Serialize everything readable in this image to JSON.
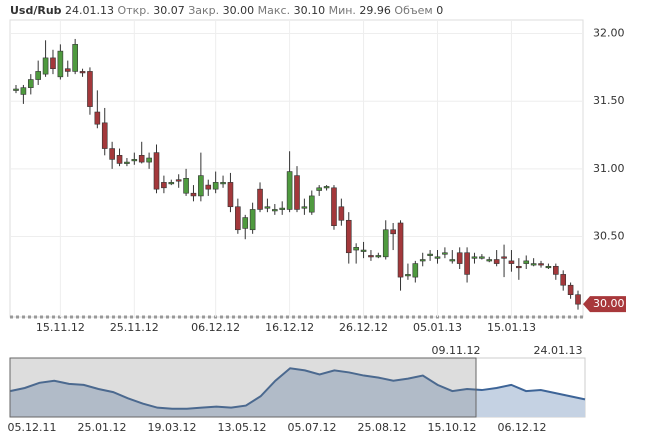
{
  "header": {
    "symbol": "Usd/Rub",
    "date": "24.01.13",
    "open_label": "Откр.",
    "open": "30.07",
    "close_label": "Закр.",
    "close": "30.00",
    "high_label": "Макс.",
    "high": "30.10",
    "low_label": "Мин.",
    "low": "29.96",
    "volume_label": "Объем",
    "volume": "0"
  },
  "chart_data": {
    "type": "candlestick",
    "up_color": "#4f9a3f",
    "down_color": "#a3383b",
    "grid": true,
    "x": [
      "09.11.12",
      "10.11.12",
      "11.11.12",
      "12.11.12",
      "13.11.12",
      "14.11.12",
      "15.11.12",
      "16.11.12",
      "17.11.12",
      "18.11.12",
      "19.11.12",
      "20.11.12",
      "21.11.12",
      "22.11.12",
      "23.11.12",
      "24.11.12",
      "25.11.12",
      "26.11.12",
      "27.11.12",
      "28.11.12",
      "29.11.12",
      "30.11.12",
      "01.12.12",
      "02.12.12",
      "03.12.12",
      "04.12.12",
      "05.12.12",
      "06.12.12",
      "07.12.12",
      "08.12.12",
      "09.12.12",
      "10.12.12",
      "11.12.12",
      "12.12.12",
      "13.12.12",
      "14.12.12",
      "15.12.12",
      "16.12.12",
      "17.12.12",
      "18.12.12",
      "19.12.12",
      "20.12.12",
      "21.12.12",
      "22.12.12",
      "23.12.12",
      "24.12.12",
      "25.12.12",
      "26.12.12",
      "27.12.12",
      "28.12.12",
      "29.12.12",
      "30.12.12",
      "31.12.12",
      "01.01.13",
      "02.01.13",
      "03.01.13",
      "04.01.13",
      "05.01.13",
      "06.01.13",
      "07.01.13",
      "08.01.13",
      "09.01.13",
      "10.01.13",
      "11.01.13",
      "12.01.13",
      "13.01.13",
      "14.01.13",
      "15.01.13",
      "16.01.13",
      "17.01.13",
      "18.01.13",
      "19.01.13",
      "20.01.13",
      "21.01.13",
      "22.01.13",
      "23.01.13",
      "24.01.13"
    ],
    "open": [
      31.58,
      31.55,
      31.6,
      31.66,
      31.7,
      31.82,
      31.68,
      31.74,
      31.72,
      31.72,
      31.72,
      31.42,
      31.34,
      31.15,
      31.1,
      31.05,
      31.06,
      31.1,
      31.05,
      31.12,
      30.9,
      30.9,
      30.92,
      30.82,
      30.82,
      30.8,
      30.88,
      30.85,
      30.9,
      30.9,
      30.72,
      30.56,
      30.55,
      30.85,
      30.72,
      30.7,
      30.7,
      30.7,
      30.95,
      30.72,
      30.68,
      30.84,
      30.86,
      30.86,
      30.72,
      30.62,
      30.4,
      30.4,
      30.36,
      30.36,
      30.35,
      30.55,
      30.6,
      30.22,
      30.2,
      30.32,
      30.36,
      30.35,
      30.38,
      30.33,
      30.38,
      30.38,
      30.35,
      30.35,
      30.33,
      30.33,
      30.35,
      30.32,
      30.28,
      30.3,
      30.3,
      30.3,
      30.28,
      30.28,
      30.22,
      30.14,
      30.07
    ],
    "high": [
      31.62,
      31.62,
      31.7,
      31.8,
      31.95,
      31.88,
      31.92,
      31.8,
      31.96,
      31.74,
      31.75,
      31.58,
      31.45,
      31.2,
      31.15,
      31.08,
      31.12,
      31.2,
      31.12,
      31.18,
      30.95,
      30.92,
      30.96,
      31.0,
      30.88,
      31.12,
      30.92,
      30.98,
      30.95,
      30.97,
      30.78,
      30.66,
      30.75,
      30.9,
      30.78,
      30.74,
      30.76,
      31.13,
      31.02,
      30.78,
      30.84,
      30.88,
      30.88,
      30.88,
      30.78,
      30.68,
      30.45,
      30.46,
      30.4,
      30.38,
      30.62,
      30.6,
      30.62,
      30.3,
      30.32,
      30.38,
      30.4,
      30.4,
      30.42,
      30.4,
      30.42,
      30.42,
      30.38,
      30.37,
      30.35,
      30.4,
      30.44,
      30.4,
      30.34,
      30.36,
      30.34,
      30.32,
      30.3,
      30.3,
      30.25,
      30.16,
      30.1
    ],
    "low": [
      31.56,
      31.48,
      31.55,
      31.62,
      31.68,
      31.7,
      31.66,
      31.68,
      31.7,
      31.68,
      31.4,
      31.3,
      31.1,
      31.0,
      31.02,
      31.02,
      31.03,
      31.04,
      31.0,
      30.82,
      30.82,
      30.88,
      30.86,
      30.8,
      30.76,
      30.76,
      30.8,
      30.82,
      30.86,
      30.68,
      30.52,
      30.48,
      30.52,
      30.68,
      30.68,
      30.66,
      30.66,
      30.68,
      30.68,
      30.66,
      30.66,
      30.8,
      30.84,
      30.55,
      30.58,
      30.3,
      30.3,
      30.34,
      30.32,
      30.34,
      30.33,
      30.4,
      30.1,
      30.18,
      30.16,
      30.28,
      30.32,
      30.3,
      30.34,
      30.3,
      30.26,
      30.16,
      30.3,
      30.33,
      30.31,
      30.28,
      30.2,
      30.24,
      30.18,
      30.26,
      30.28,
      30.27,
      30.26,
      30.18,
      30.1,
      30.04,
      29.96
    ],
    "close": [
      31.59,
      31.6,
      31.66,
      31.72,
      31.82,
      31.74,
      31.87,
      31.72,
      31.92,
      31.71,
      31.46,
      31.33,
      31.15,
      31.07,
      31.04,
      31.05,
      31.07,
      31.05,
      31.08,
      30.85,
      30.86,
      30.9,
      30.91,
      30.93,
      30.8,
      30.95,
      30.85,
      30.9,
      30.9,
      30.72,
      30.55,
      30.64,
      30.7,
      30.7,
      30.72,
      30.7,
      30.71,
      30.98,
      30.7,
      30.72,
      30.8,
      30.86,
      30.87,
      30.58,
      30.62,
      30.38,
      30.42,
      30.4,
      30.35,
      30.36,
      30.55,
      30.52,
      30.2,
      30.22,
      30.3,
      30.33,
      30.37,
      30.35,
      30.38,
      30.33,
      30.3,
      30.22,
      30.35,
      30.35,
      30.33,
      30.3,
      30.34,
      30.3,
      30.27,
      30.32,
      30.3,
      30.29,
      30.28,
      30.22,
      30.14,
      30.07,
      30.0
    ],
    "xticks": [
      "15.11.12",
      "25.11.12",
      "06.12.12",
      "16.12.12",
      "26.12.12",
      "05.01.13",
      "15.01.13"
    ],
    "ylim": [
      29.92,
      32.1
    ],
    "yticks": [
      {
        "value": 32,
        "label": "32.00"
      },
      {
        "value": 31.5,
        "label": "31.50"
      },
      {
        "value": 31,
        "label": "31.00"
      },
      {
        "value": 30.5,
        "label": "30.50"
      }
    ],
    "last_price": {
      "value": 30,
      "label": "30.00"
    },
    "navigator": {
      "type": "area",
      "color": "#3d6497",
      "ylim": [
        28.5,
        34
      ],
      "values": [
        31.0,
        31.3,
        31.8,
        32.0,
        31.7,
        31.6,
        31.2,
        30.9,
        30.3,
        29.8,
        29.4,
        29.3,
        29.3,
        29.4,
        29.5,
        29.4,
        29.6,
        30.5,
        32.0,
        33.2,
        33.0,
        32.6,
        33.0,
        32.8,
        32.5,
        32.3,
        32.0,
        32.2,
        32.5,
        31.6,
        31.0,
        31.2,
        31.1,
        31.3,
        31.6,
        31.0,
        31.1,
        30.8,
        30.5,
        30.2
      ],
      "x_labels": [
        "05.12.11",
        "25.01.12",
        "19.03.12",
        "13.05.12",
        "05.07.12",
        "25.08.12",
        "15.10.12",
        "06.12.12"
      ],
      "range_labels": [
        "09.11.12",
        "24.01.13"
      ]
    }
  }
}
